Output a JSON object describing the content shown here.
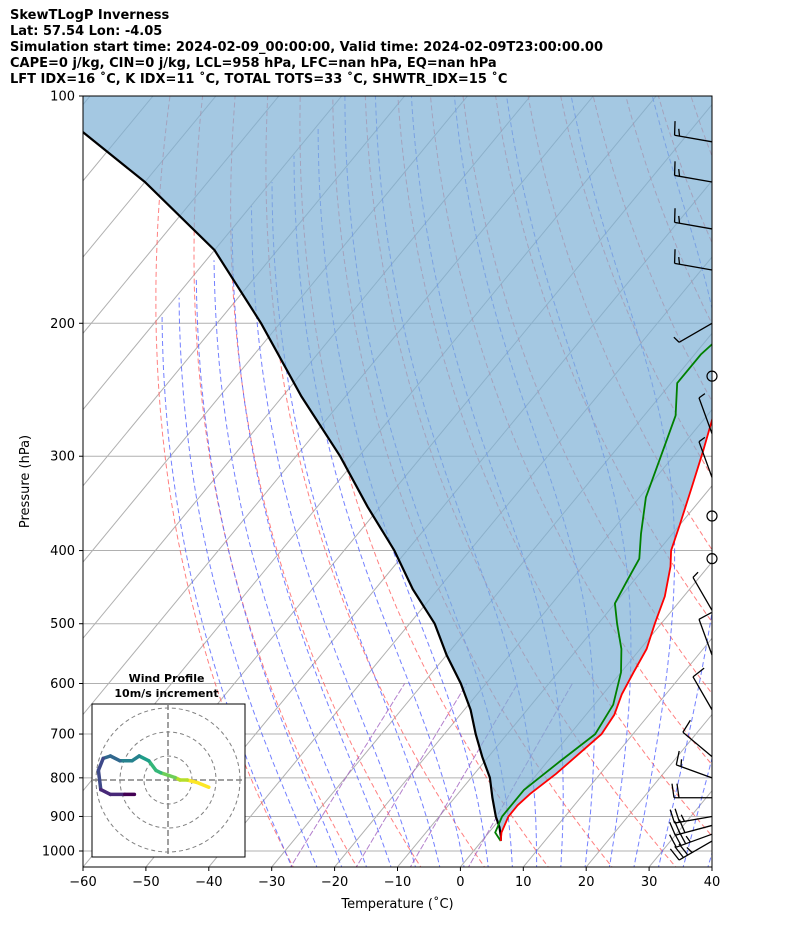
{
  "header": {
    "line1": "SkewTLogP Inverness",
    "line2": "Lat: 57.54   Lon: -4.05",
    "line3": "Simulation start time: 2024-02-09_00:00:00, Valid time: 2024-02-09T23:00:00.00",
    "line4": "CAPE=0 j/kg, CIN=0 j/kg, LCL=958 hPa, LFC=nan hPa, EQ=nan hPa",
    "line5": "LFT IDX=16 ˚C, K IDX=11 ˚C, TOTAL TOTS=33 ˚C, SHWTR_IDX=15 ˚C"
  },
  "chart_data": {
    "type": "skewt",
    "xlabel": "Temperature (˚C)",
    "ylabel": "Pressure (hPa)",
    "xlim": [
      -60,
      40
    ],
    "ylim": [
      1050,
      100
    ],
    "x_ticks": [
      -60,
      -50,
      -40,
      -30,
      -20,
      -10,
      0,
      10,
      20,
      30,
      40
    ],
    "x_tick_labels": [
      "−60",
      "−50",
      "−40",
      "−30",
      "−20",
      "−10",
      "0",
      "10",
      "20",
      "30",
      "40"
    ],
    "y_ticks": [
      1000,
      900,
      800,
      700,
      600,
      500,
      400,
      300,
      200,
      100
    ],
    "y_tick_labels": [
      "1000",
      "900",
      "800",
      "700",
      "600",
      "500",
      "400",
      "300",
      "200",
      "100"
    ],
    "grid": true,
    "temperature": {
      "color": "#ff0000",
      "points": [
        [
          3,
          970
        ],
        [
          2,
          945
        ],
        [
          1,
          900
        ],
        [
          1,
          870
        ],
        [
          1.5,
          840
        ],
        [
          3,
          790
        ],
        [
          5,
          700
        ],
        [
          4.5,
          660
        ],
        [
          3,
          620
        ],
        [
          2,
          580
        ],
        [
          1,
          540
        ],
        [
          -1,
          500
        ],
        [
          -3,
          460
        ],
        [
          -6,
          420
        ],
        [
          -8,
          400
        ],
        [
          -10,
          370
        ],
        [
          -13,
          330
        ],
        [
          -16,
          295
        ],
        [
          -19,
          265
        ],
        [
          -22,
          240
        ],
        [
          -19,
          225
        ],
        [
          -15,
          210
        ],
        [
          -12,
          200
        ],
        [
          -12,
          190
        ],
        [
          -13,
          180
        ],
        [
          -12,
          170
        ],
        [
          -11,
          160
        ],
        [
          -10,
          150
        ],
        [
          -9,
          140
        ],
        [
          -7,
          130
        ],
        [
          -5,
          120
        ],
        [
          -3,
          110
        ],
        [
          -1,
          100
        ]
      ]
    },
    "dewpoint": {
      "color": "#008000",
      "points": [
        [
          3,
          970
        ],
        [
          1,
          945
        ],
        [
          0,
          900
        ],
        [
          0,
          870
        ],
        [
          0,
          830
        ],
        [
          2,
          760
        ],
        [
          4,
          700
        ],
        [
          3,
          640
        ],
        [
          0,
          580
        ],
        [
          -3,
          540
        ],
        [
          -7,
          500
        ],
        [
          -10,
          470
        ],
        [
          -11,
          440
        ],
        [
          -12,
          410
        ],
        [
          -15,
          380
        ],
        [
          -19,
          340
        ],
        [
          -22,
          300
        ],
        [
          -25,
          265
        ],
        [
          -29,
          240
        ],
        [
          -29,
          220
        ],
        [
          -28,
          205
        ],
        [
          -26,
          190
        ],
        [
          -30,
          180
        ],
        [
          -28,
          160
        ],
        [
          -24,
          140
        ],
        [
          -20,
          125
        ],
        [
          -15,
          112
        ],
        [
          -12,
          100
        ]
      ]
    },
    "parcel": {
      "color": "#000000",
      "points": [
        [
          3,
          970
        ],
        [
          2.5,
          958
        ],
        [
          1,
          930
        ],
        [
          -1,
          900
        ],
        [
          -4,
          850
        ],
        [
          -7,
          800
        ],
        [
          -11,
          750
        ],
        [
          -15,
          700
        ],
        [
          -19,
          650
        ],
        [
          -24,
          600
        ],
        [
          -30,
          550
        ],
        [
          -36,
          500
        ],
        [
          -44,
          450
        ],
        [
          -52,
          400
        ],
        [
          -62,
          350
        ],
        [
          -73,
          300
        ],
        [
          -87,
          250
        ],
        [
          -103,
          200
        ],
        [
          -120,
          160
        ],
        [
          -140,
          130
        ],
        [
          -158,
          110
        ],
        [
          -172,
          100
        ]
      ]
    },
    "cape_cin_fill_color": "#7eb0d5",
    "isotherm_color": "#b0b0b0",
    "dry_adiabat_color": "#ff6060",
    "moist_adiabat_color": "#5060ff",
    "mixing_ratio_color": "#a060c0",
    "wind_barbs": [
      {
        "p": 970,
        "speed_kt": 35,
        "dir_deg": 240
      },
      {
        "p": 950,
        "speed_kt": 35,
        "dir_deg": 250
      },
      {
        "p": 925,
        "speed_kt": 30,
        "dir_deg": 255
      },
      {
        "p": 900,
        "speed_kt": 25,
        "dir_deg": 260
      },
      {
        "p": 850,
        "speed_kt": 20,
        "dir_deg": 270
      },
      {
        "p": 800,
        "speed_kt": 15,
        "dir_deg": 290
      },
      {
        "p": 750,
        "speed_kt": 10,
        "dir_deg": 310
      },
      {
        "p": 650,
        "speed_kt": 10,
        "dir_deg": 330
      },
      {
        "p": 550,
        "speed_kt": 10,
        "dir_deg": 340
      },
      {
        "p": 480,
        "speed_kt": 5,
        "dir_deg": 330
      },
      {
        "p": 410,
        "speed_kt": 0,
        "dir_deg": 0
      },
      {
        "p": 360,
        "speed_kt": 0,
        "dir_deg": 0
      },
      {
        "p": 320,
        "speed_kt": 5,
        "dir_deg": 340
      },
      {
        "p": 280,
        "speed_kt": 5,
        "dir_deg": 340
      },
      {
        "p": 235,
        "speed_kt": 0,
        "dir_deg": 0
      },
      {
        "p": 200,
        "speed_kt": 5,
        "dir_deg": 240
      },
      {
        "p": 170,
        "speed_kt": 15,
        "dir_deg": 280
      },
      {
        "p": 150,
        "speed_kt": 15,
        "dir_deg": 280
      },
      {
        "p": 130,
        "speed_kt": 15,
        "dir_deg": 280
      },
      {
        "p": 115,
        "speed_kt": 15,
        "dir_deg": 280
      }
    ],
    "hodograph": {
      "title": "Wind Profile",
      "subtitle": "10m/s increment",
      "rings_ms": [
        10,
        20,
        30
      ],
      "points": [
        [
          17,
          -3
        ],
        [
          12,
          -1
        ],
        [
          8,
          0
        ],
        [
          5,
          0
        ],
        [
          3,
          1
        ],
        [
          0,
          2
        ],
        [
          -3,
          3
        ],
        [
          -5,
          4
        ],
        [
          -8,
          8
        ],
        [
          -12,
          10
        ],
        [
          -15,
          8
        ],
        [
          -20,
          8
        ],
        [
          -24,
          10
        ],
        [
          -27,
          9
        ],
        [
          -29,
          4
        ],
        [
          -28,
          -4
        ],
        [
          -24,
          -6
        ],
        [
          -18,
          -6
        ],
        [
          -14,
          -6
        ]
      ]
    }
  }
}
